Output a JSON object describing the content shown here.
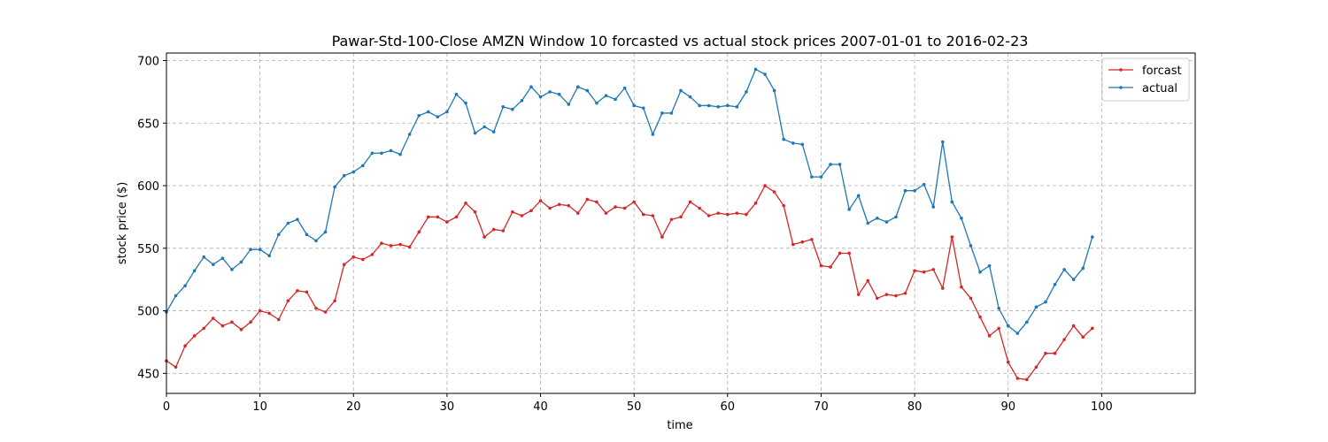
{
  "chart_data": {
    "type": "line",
    "title": "Pawar-Std-100-Close AMZN Window 10 forcasted vs actual stock prices 2007-01-01 to 2016-02-23",
    "xlabel": "time",
    "ylabel": "stock price ($)",
    "xlim": [
      0,
      110
    ],
    "ylim": [
      434,
      706
    ],
    "x_ticks": [
      0,
      10,
      20,
      30,
      40,
      50,
      60,
      70,
      80,
      90,
      100
    ],
    "y_ticks": [
      450,
      500,
      550,
      600,
      650,
      700
    ],
    "grid": true,
    "legend_position": "top-right",
    "series": [
      {
        "name": "forcast",
        "color": "#d62728",
        "values": [
          460,
          455,
          472,
          480,
          486,
          494,
          488,
          491,
          485,
          491,
          500,
          498,
          493,
          508,
          516,
          515,
          502,
          499,
          508,
          537,
          543,
          541,
          545,
          554,
          552,
          553,
          551,
          563,
          575,
          575,
          571,
          575,
          586,
          579,
          559,
          565,
          564,
          579,
          576,
          580,
          588,
          582,
          585,
          584,
          578,
          589,
          587,
          578,
          583,
          582,
          587,
          577,
          576,
          559,
          573,
          575,
          587,
          582,
          576,
          578,
          577,
          578,
          577,
          586,
          600,
          595,
          584,
          553,
          555,
          557,
          536,
          535,
          546,
          546,
          513,
          524,
          510,
          513,
          512,
          514,
          532,
          531,
          533,
          518,
          559,
          519,
          510,
          495,
          480,
          486,
          459,
          446,
          445,
          455,
          466,
          466,
          477,
          488,
          479,
          486
        ]
      },
      {
        "name": "actual",
        "color": "#1f77b4",
        "values": [
          499,
          512,
          520,
          532,
          543,
          537,
          542,
          533,
          539,
          549,
          549,
          544,
          561,
          570,
          573,
          561,
          556,
          563,
          599,
          608,
          611,
          616,
          626,
          626,
          628,
          625,
          641,
          656,
          659,
          655,
          659,
          673,
          666,
          642,
          647,
          643,
          663,
          661,
          668,
          679,
          671,
          675,
          673,
          665,
          679,
          676,
          666,
          672,
          669,
          678,
          664,
          662,
          641,
          658,
          658,
          676,
          671,
          664,
          664,
          663,
          664,
          663,
          675,
          693,
          689,
          676,
          637,
          634,
          633,
          607,
          607,
          617,
          617,
          581,
          592,
          570,
          574,
          571,
          575,
          596,
          596,
          601,
          583,
          635,
          587,
          574,
          552,
          531,
          536,
          502,
          488,
          482,
          491,
          503,
          507,
          521,
          533,
          525,
          534,
          559
        ]
      }
    ]
  }
}
